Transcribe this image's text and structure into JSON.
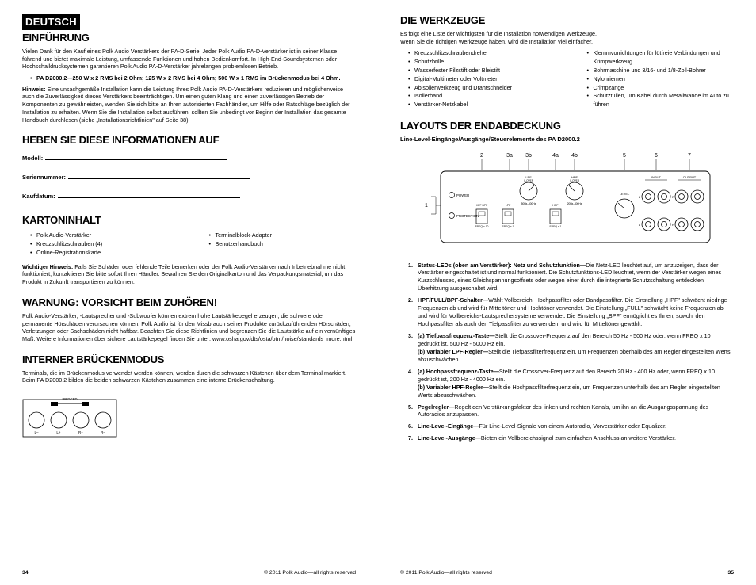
{
  "left": {
    "lang": "DEUTSCH",
    "s_einfuhrung": "EINFÜHRUNG",
    "einfuhrung_p": "Vielen Dank für den Kauf eines Polk Audio Verstärkers der PA-D-Serie. Jeder Polk Audio PA-D-Verstärker ist in seiner Klasse führend und bietet maximale Leistung, umfassende Funktionen und hohen Bedienkomfort. In High-End-Sound­systemen oder Hochschalldrucksystemen garantieren Polk Audio PA-D-Verstärker jahrelangen problemlosen Betrieb.",
    "einfuhrung_bullet": "PA D2000.2—250 W x 2 RMS bei 2 Ohm; 125 W x 2 RMS bei 4 Ohm; 500 W x 1 RMS im Brückenmodus bei 4 Ohm.",
    "hinweis_label": "Hinweis:",
    "hinweis_p": " Eine unsachgemäße Installation kann die Leistung Ihres Polk Audio PA-D-Verstärkers reduzieren und möglicherweise auch die Zuverlässigkeit dieses Verstärkers beeinträchtigen. Um einen guten Klang und einen zuverlässigen Betrieb der Komponenten zu gewährleisten, wenden Sie sich bitte an Ihren autorisierten Fachhändler, um Hilfe oder Ratschläge bezüglich der Installation zu erhalten. Wenn Sie die Installation selbst ausführen, sollten Sie unbedingt vor Beginn der Installation das gesamte Handbuch durchlesen (siehe „Installationsrichtlinien\" auf Seite 38).",
    "s_heben": "HEBEN SIE DIESE INFORMATIONEN AUF",
    "form_modell": "Modell:",
    "form_serien": "Seriennummer:",
    "form_kauf": "Kaufdatum:",
    "s_karton": "KARTONINHALT",
    "karton_col1": [
      "Polk Audio-Verstärker",
      "Kreuzschlitzschrauben (4)",
      "Online-Registrationskarte"
    ],
    "karton_col2": [
      "Terminalblock-Adapter",
      "Benutzerhandbuch"
    ],
    "wichtiger_label": "Wichtiger Hinweis:",
    "wichtiger_p": " Falls Sie Schäden oder fehlende Teile bemerken oder der Polk Audio-Verstärker nach Inbetriebnahme nicht funktioniert, kontaktieren Sie bitte sofort Ihren Händler. Bewahren Sie den Originalkarton und das Verpackungsmaterial, um das Produkt in Zukunft transportieren zu können.",
    "s_warnung": "WARNUNG: VORSICHT BEIM ZUHÖREN!",
    "warnung_p": "Polk Audio-Verstärker, -Lautsprecher und -Subwoofer können extrem hohe Lautstärkepegel erzeugen, die schwere oder permanente Hörschäden verursachen können. Polk Audio ist für den Missbrauch seiner Produkte zurückzuführenden Hörschäden, Verletzungen oder Sachschäden nicht haftbar. Beachten Sie diese Richtlinien und begrenzen Sie die Lautstärke auf ein vernünftiges Maß. Weitere Informationen über sichere Lautstärkepegel finden Sie unter: www.osha.gov/dts/osta/otm/noise/standards_more.html",
    "s_interner": "INTERNER BRÜCKENMODUS",
    "interner_p": "Terminals, die im Brückenmodus verwendet werden können, werden durch die schwarzen Kästchen über dem Terminal markiert. Beim PA D2000.2 bilden die beiden schwarzen Kästchen zusammen eine interne Brückenschaltung.",
    "diagram1": {
      "label_bridged": "BRIDGED",
      "terminals": [
        "L–",
        "L+",
        "R+",
        "R–"
      ]
    },
    "pagenum": "34",
    "copyright": "© 2011 Polk Audio—all rights reserved"
  },
  "right": {
    "s_werkzeuge": "DIE WERKZEUGE",
    "werkzeuge_intro1": "Es folgt eine Liste der wichtigsten für die Installation notwendigen Werkzeuge.",
    "werkzeuge_intro2": "Wenn Sie die richtigen Werkzeuge haben, wird die Installation viel einfacher.",
    "werk_col1": [
      "Kreuzschlitzschraubendreher",
      "Schutzbrille",
      "Wasserfester Filzstift oder Bleistift",
      "Digital-Multimeter oder Voltmeter",
      "Abisolierwerkzeug und Drahtschneider",
      "Isolierband",
      "Verstärker-Netzkabel"
    ],
    "werk_col2": [
      "Klemmvorrichtungen für lötfreie Verbindungen und Krimpwerkzeug",
      "Bohrmaschine und 3/16- und 1/8-Zoll-Bohrer",
      "Nylonriemen",
      "Crimpzange",
      "Schutztüllen, um Kabel durch Metallwände im Auto zu führen"
    ],
    "s_layouts": "LAYOUTS DER ENDABDECKUNG",
    "layouts_sub": "Line-Level-Eingänge/Ausgänge/Steuerelemente des PA D2000.2",
    "panel": {
      "top_labels": [
        "2",
        "3a",
        "3b",
        "4a",
        "4b",
        "5",
        "6",
        "7"
      ],
      "left_num": "1",
      "power": "POWER",
      "protection": "PROTECTION",
      "knob_top": [
        "LPF",
        "HPF"
      ],
      "knob_top2": [
        "X-OVER",
        "X-OVER"
      ],
      "switch_labels": [
        "LPF",
        "FREQ x 1",
        "HPF",
        "FREQ x 1"
      ],
      "switch_small1": [
        "HPF BPF",
        "FREQ x 10"
      ],
      "switch_small2": [
        "FULL",
        "FREQ x 10"
      ],
      "knob_bottom": [
        "50Hz–500Hz",
        "20Hz–400Hz"
      ],
      "level": "LEVEL",
      "input": "INPUT",
      "output": "OUTPUT",
      "LR": [
        "L",
        "R",
        "L",
        "R"
      ]
    },
    "numbered": [
      {
        "n": "1.",
        "title": "Status-LEDs (oben am Verstärker): Netz und Schutzfunktion—",
        "body": "Die Netz-LED leuchtet auf, um anzuzeigen, dass der Verstärker eingeschaltet ist und normal funktioniert. Die Schutzfunktions-LED leuchtet, wenn der Verstärker wegen eines Kurzschlusses, eines Gleichspannungsoffsets oder wegen einer durch die integrierte Schutzschaltung entdeckten Überhitzung ausgeschaltet wird."
      },
      {
        "n": "2.",
        "title": "HPF/FULL/BPF-Schalter—",
        "body": "Wählt Vollbereich, Hochpassfilter oder Bandpassfilter. Die Einstellung „HPF\" schwächt niedrige Frequenzen ab und wird für Mitteltöner und Hochtöner verwendet. Die Einstellung „FULL\" schwächt keine Frequenzen ab und wird für Vollbereichs-Lautsprechersysteme verwendet. Die Einstellung „BPF\" ermöglicht es Ihnen, sowohl den Hochpassfilter als auch den Tiefpassfilter zu verwenden, und wird für Mitteltöner gewählt."
      },
      {
        "n": "3.",
        "title": "(a) Tiefpassfrequenz-Taste—",
        "body": "Stellt die Crossover-Frequenz auf den Bereich 50 Hz - 500 Hz oder, wenn FREQ x 10 gedrückt ist, 500 Hz - 5000 Hz ein.",
        "title2": "(b) Variabler LPF-Regler—",
        "body2": "Stellt die Tiefpassfilterfrequenz ein, um Frequenzen oberhalb des am Regler eingestellten Werts abzuschwächen."
      },
      {
        "n": "4.",
        "title": "(a) Hochpassfrequenz-Taste—",
        "body": "Stellt die Crossover-Frequenz auf den Bereich 20 Hz - 400 Hz oder, wenn FREQ x 10 gedrückt ist, 200 Hz - 4000 Hz ein.",
        "title2": "(b) Variabler HPF-Regler—",
        "body2": "Stellt die Hochpassfilterfrequenz ein, um Frequenzen unterhalb des am Regler eingestellten Werts abzuschwächen."
      },
      {
        "n": "5.",
        "title": "Pegelregler—",
        "body": "Regelt den Verstärkungsfaktor des linken und rechten Kanals, um ihn an die Ausgangsspannung des Autoradios anzupassen."
      },
      {
        "n": "6.",
        "title": "Line-Level-Eingänge—",
        "body": "Für Line-Level-Signale von einem Autoradio, Vorverstärker oder Equalizer."
      },
      {
        "n": "7.",
        "title": "Line-Level-Ausgänge—",
        "body": "Bieten ein Vollbereichssignal zum einfachen Anschluss an weitere Verstärker."
      }
    ],
    "pagenum": "35",
    "copyright": "© 2011 Polk Audio—all rights reserved"
  }
}
